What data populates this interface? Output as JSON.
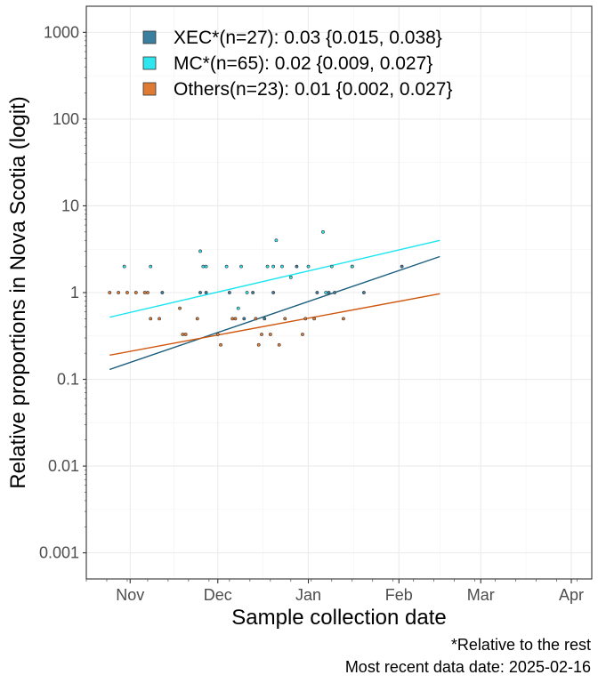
{
  "chart_data": {
    "type": "scatter",
    "title": "",
    "xlabel": "Sample collection date",
    "ylabel": "Relative proportions in Nova Scotia (logit)",
    "y_scale": "log",
    "ylim": [
      0.0005,
      2000
    ],
    "xlim": [
      "2024-10-17",
      "2025-04-08"
    ],
    "x_ticks": [
      {
        "label": "Nov",
        "date": "2024-11-01"
      },
      {
        "label": "Dec",
        "date": "2024-12-01"
      },
      {
        "label": "Jan",
        "date": "2025-01-01"
      },
      {
        "label": "Feb",
        "date": "2025-02-01"
      },
      {
        "label": "Mar",
        "date": "2025-03-01"
      },
      {
        "label": "Apr",
        "date": "2025-04-01"
      }
    ],
    "y_ticks": [
      {
        "label": "0.001",
        "value": 0.001
      },
      {
        "label": "0.01",
        "value": 0.01
      },
      {
        "label": "0.1",
        "value": 0.1
      },
      {
        "label": "1",
        "value": 1
      },
      {
        "label": "10",
        "value": 10
      },
      {
        "label": "100",
        "value": 100
      },
      {
        "label": "1000",
        "value": 1000
      }
    ],
    "grid": true,
    "legend_position": "top-left",
    "series": [
      {
        "name": "XEC*(n=27): 0.03 {0.015, 0.038}",
        "color": "#1b5e7e",
        "fill": "#3a7ea0",
        "line": [
          [
            "2024-10-25",
            0.13
          ],
          [
            "2025-02-15",
            2.6
          ]
        ],
        "points": [
          [
            "2024-11-12",
            1
          ],
          [
            "2024-11-25",
            1
          ],
          [
            "2024-11-27",
            1
          ],
          [
            "2024-12-05",
            1
          ],
          [
            "2024-12-10",
            0.5
          ],
          [
            "2024-12-13",
            1
          ],
          [
            "2024-12-17",
            0.5
          ],
          [
            "2024-12-20",
            1
          ],
          [
            "2024-12-28",
            2
          ],
          [
            "2025-01-04",
            1
          ],
          [
            "2025-01-08",
            1
          ],
          [
            "2025-01-10",
            1
          ],
          [
            "2025-01-16",
            2
          ],
          [
            "2025-01-20",
            1
          ],
          [
            "2025-02-02",
            2
          ]
        ]
      },
      {
        "name": "MC*(n=65): 0.02 {0.009, 0.027}",
        "color": "#19e5f0",
        "fill": "#2ee6ee",
        "line": [
          [
            "2024-10-25",
            0.52
          ],
          [
            "2025-02-15",
            4.0
          ]
        ],
        "points": [
          [
            "2024-10-30",
            2
          ],
          [
            "2024-11-08",
            2
          ],
          [
            "2024-11-26",
            2
          ],
          [
            "2024-11-27",
            2
          ],
          [
            "2024-12-04",
            2
          ],
          [
            "2024-12-08",
            0.66
          ],
          [
            "2024-12-09",
            2
          ],
          [
            "2024-12-11",
            1
          ],
          [
            "2024-12-18",
            2
          ],
          [
            "2024-12-20",
            2
          ],
          [
            "2024-12-21",
            4
          ],
          [
            "2024-12-23",
            2
          ],
          [
            "2024-12-26",
            1.5
          ],
          [
            "2025-01-01",
            2
          ],
          [
            "2025-01-06",
            5
          ],
          [
            "2025-01-07",
            1
          ],
          [
            "2025-01-09",
            2
          ],
          [
            "2025-01-16",
            2
          ],
          [
            "2024-11-25",
            3
          ]
        ]
      },
      {
        "name": "Others(n=23): 0.01 {0.002, 0.027}",
        "color": "#d0560e",
        "fill": "#e07b33",
        "line": [
          [
            "2024-10-25",
            0.19
          ],
          [
            "2025-02-15",
            0.97
          ]
        ],
        "points": [
          [
            "2024-10-25",
            1
          ],
          [
            "2024-10-28",
            1
          ],
          [
            "2024-10-31",
            1
          ],
          [
            "2024-11-03",
            1
          ],
          [
            "2024-11-06",
            1
          ],
          [
            "2024-11-07",
            1
          ],
          [
            "2024-11-08",
            0.5
          ],
          [
            "2024-11-11",
            0.5
          ],
          [
            "2024-11-18",
            0.66
          ],
          [
            "2024-11-19",
            0.33
          ],
          [
            "2024-11-20",
            0.33
          ],
          [
            "2024-11-24",
            0.5
          ],
          [
            "2024-12-01",
            0.33
          ],
          [
            "2024-12-02",
            0.25
          ],
          [
            "2024-12-06",
            0.5
          ],
          [
            "2024-12-07",
            0.5
          ],
          [
            "2024-12-14",
            0.5
          ],
          [
            "2024-12-15",
            0.25
          ],
          [
            "2024-12-16",
            0.33
          ],
          [
            "2024-12-19",
            0.33
          ],
          [
            "2024-12-22",
            0.25
          ],
          [
            "2024-12-24",
            0.5
          ],
          [
            "2024-12-30",
            0.33
          ],
          [
            "2024-12-31",
            0.5
          ],
          [
            "2025-01-03",
            0.5
          ],
          [
            "2025-01-13",
            0.5
          ]
        ]
      }
    ]
  },
  "caption": {
    "line1": "*Relative to the rest",
    "line2": "Most recent data date: 2025-02-16"
  }
}
